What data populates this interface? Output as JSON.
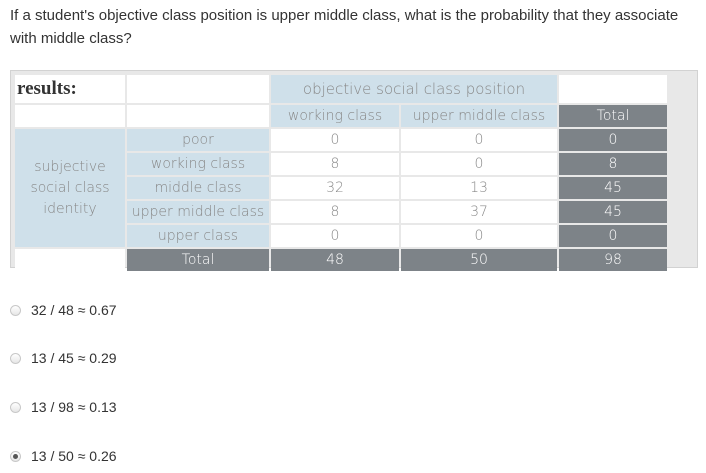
{
  "question": "If a student's objective class position is upper middle class, what is the probability that they associate with middle class?",
  "table": {
    "results_label": "results:",
    "col_group_header": "objective social class position",
    "col_headers": [
      "working class",
      "upper middle class"
    ],
    "total_header": "Total",
    "row_group_label": {
      "line1": "subjective",
      "line2": "social class",
      "line3": "identity"
    },
    "rows": [
      {
        "label": "poor",
        "values": [
          "0",
          "0"
        ],
        "total": "0"
      },
      {
        "label": "working class",
        "values": [
          "8",
          "0"
        ],
        "total": "8"
      },
      {
        "label": "middle class",
        "values": [
          "32",
          "13"
        ],
        "total": "45"
      },
      {
        "label": "upper middle class",
        "values": [
          "8",
          "37"
        ],
        "total": "45"
      },
      {
        "label": "upper class",
        "values": [
          "0",
          "0"
        ],
        "total": "0"
      }
    ],
    "total_row": {
      "label": "Total",
      "values": [
        "48",
        "50"
      ],
      "total": "98"
    }
  },
  "options": [
    {
      "label": "32 / 48 ≈ 0.67",
      "selected": false
    },
    {
      "label": "13 / 45 ≈ 0.29",
      "selected": false
    },
    {
      "label": "13 / 98 ≈ 0.13",
      "selected": false
    },
    {
      "label": "13 / 50 ≈ 0.26",
      "selected": true
    }
  ]
}
